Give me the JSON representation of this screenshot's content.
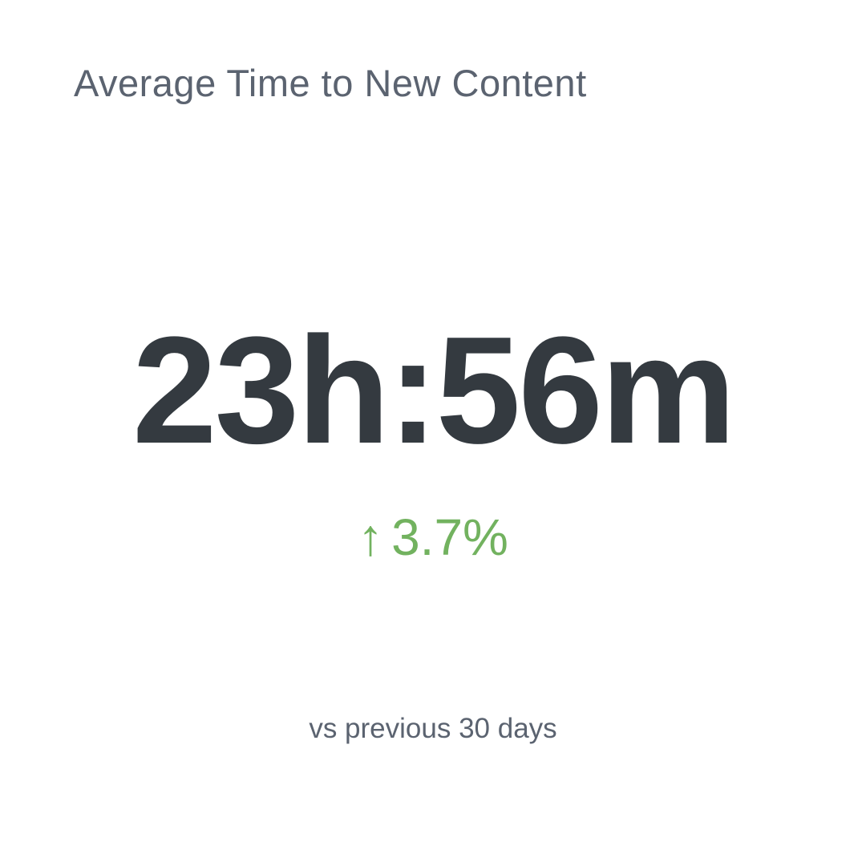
{
  "widget": {
    "title": "Average Time to New Content",
    "value": "23h:56m",
    "delta": {
      "arrow": "↑",
      "text": "3.7%",
      "direction": "up"
    },
    "comparison_label": "vs previous 30 days"
  },
  "colors": {
    "background": "#ffffff",
    "title_text": "#5b6370",
    "value_text": "#343a40",
    "delta_positive": "#72b25f",
    "comparison_text": "#5b6370"
  },
  "chart_data": {
    "type": "kpi",
    "title": "Average Time to New Content",
    "value": "23h:56m",
    "value_hours": 23,
    "value_minutes": 56,
    "change_percent": 3.7,
    "change_direction": "up",
    "comparison_period": "vs previous 30 days",
    "legend_position": "none",
    "grid": false
  }
}
